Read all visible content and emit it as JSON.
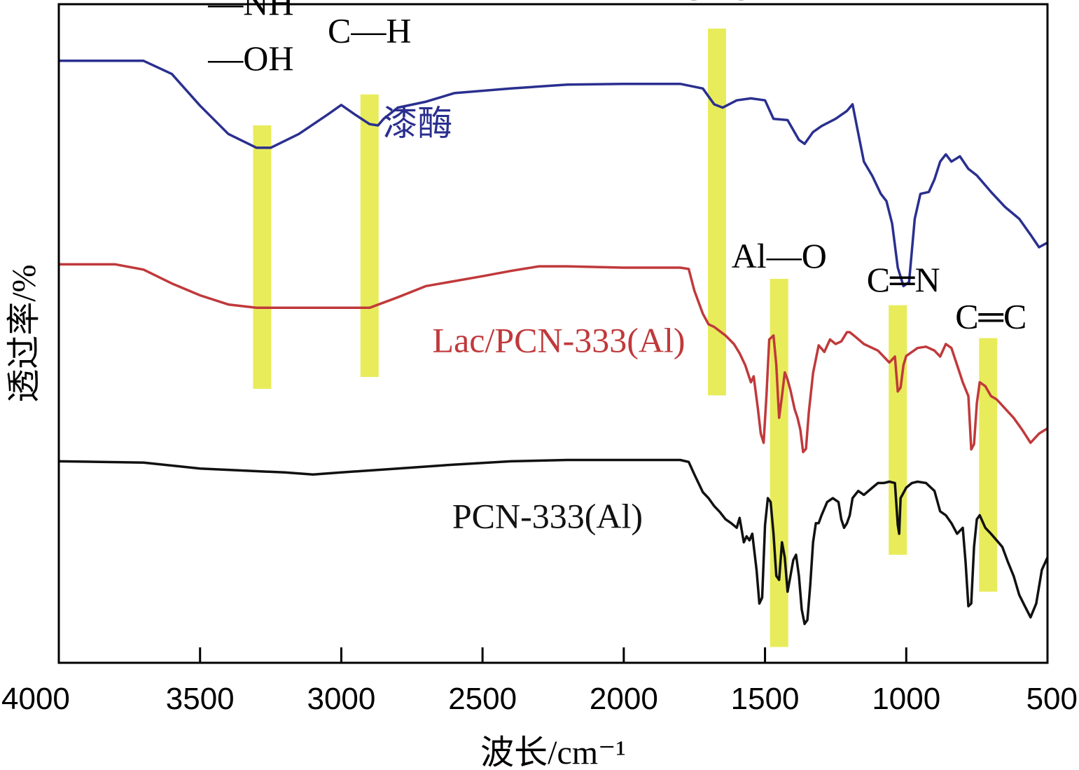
{
  "chart_data": {
    "type": "line",
    "title": "",
    "xlabel": "波长/cm⁻¹",
    "ylabel": "透过率/%",
    "xlim": [
      4000,
      500
    ],
    "x_reversed": true,
    "y_units": "transmittance, arbitrary offset (0 = bottom, 100 = top)",
    "ylim": [
      0,
      100
    ],
    "xticks": [
      4000,
      3500,
      3000,
      2500,
      2000,
      1500,
      1000,
      500
    ],
    "series": [
      {
        "name": "漆酶",
        "color": "#2a2f8f",
        "points": [
          [
            4000,
            91.4
          ],
          [
            3700,
            91.4
          ],
          [
            3600,
            89.4
          ],
          [
            3500,
            84.6
          ],
          [
            3400,
            80.3
          ],
          [
            3300,
            78.2
          ],
          [
            3250,
            78.2
          ],
          [
            3150,
            80.3
          ],
          [
            3050,
            83.2
          ],
          [
            3000,
            84.7
          ],
          [
            2950,
            83.2
          ],
          [
            2900,
            81.8
          ],
          [
            2870,
            81.6
          ],
          [
            2850,
            82.6
          ],
          [
            2800,
            84.3
          ],
          [
            2700,
            85.2
          ],
          [
            2600,
            86.5
          ],
          [
            2400,
            87.2
          ],
          [
            2200,
            87.8
          ],
          [
            2000,
            87.9
          ],
          [
            1800,
            87.9
          ],
          [
            1720,
            87.2
          ],
          [
            1680,
            84.8
          ],
          [
            1650,
            84.3
          ],
          [
            1600,
            85.4
          ],
          [
            1550,
            85.7
          ],
          [
            1500,
            85.4
          ],
          [
            1470,
            82.6
          ],
          [
            1420,
            82.4
          ],
          [
            1380,
            79.4
          ],
          [
            1360,
            78.8
          ],
          [
            1330,
            80.6
          ],
          [
            1300,
            81.5
          ],
          [
            1250,
            82.6
          ],
          [
            1210,
            83.8
          ],
          [
            1190,
            84.8
          ],
          [
            1170,
            80.4
          ],
          [
            1150,
            76.1
          ],
          [
            1120,
            73.9
          ],
          [
            1090,
            71.2
          ],
          [
            1070,
            70.1
          ],
          [
            1050,
            66.7
          ],
          [
            1030,
            60.0
          ],
          [
            1010,
            57.2
          ],
          [
            990,
            57.8
          ],
          [
            970,
            67.4
          ],
          [
            950,
            71.2
          ],
          [
            920,
            71.5
          ],
          [
            900,
            73.4
          ],
          [
            880,
            76.1
          ],
          [
            860,
            77.2
          ],
          [
            840,
            76.1
          ],
          [
            810,
            76.9
          ],
          [
            780,
            75.0
          ],
          [
            750,
            74.0
          ],
          [
            700,
            71.5
          ],
          [
            650,
            69.2
          ],
          [
            600,
            67.4
          ],
          [
            560,
            65.0
          ],
          [
            530,
            63.1
          ],
          [
            500,
            63.8
          ]
        ]
      },
      {
        "name": "Lac/PCN-333(Al)",
        "color": "#c0393b",
        "points": [
          [
            4000,
            60.5
          ],
          [
            3800,
            60.5
          ],
          [
            3700,
            59.7
          ],
          [
            3600,
            57.6
          ],
          [
            3500,
            55.8
          ],
          [
            3400,
            54.4
          ],
          [
            3300,
            53.9
          ],
          [
            3000,
            53.9
          ],
          [
            2900,
            53.9
          ],
          [
            2800,
            55.5
          ],
          [
            2700,
            57.2
          ],
          [
            2500,
            58.7
          ],
          [
            2400,
            59.5
          ],
          [
            2300,
            60.2
          ],
          [
            2200,
            60.2
          ],
          [
            2000,
            60.0
          ],
          [
            1800,
            60.0
          ],
          [
            1770,
            59.8
          ],
          [
            1750,
            56.5
          ],
          [
            1720,
            53.0
          ],
          [
            1700,
            51.4
          ],
          [
            1680,
            51.0
          ],
          [
            1640,
            49.7
          ],
          [
            1610,
            48.4
          ],
          [
            1590,
            47.0
          ],
          [
            1570,
            45.2
          ],
          [
            1550,
            42.6
          ],
          [
            1540,
            43.5
          ],
          [
            1525,
            38.5
          ],
          [
            1515,
            34.8
          ],
          [
            1505,
            33.4
          ],
          [
            1495,
            40.5
          ],
          [
            1485,
            49.1
          ],
          [
            1470,
            49.7
          ],
          [
            1460,
            45.2
          ],
          [
            1450,
            37.2
          ],
          [
            1440,
            40.5
          ],
          [
            1430,
            44.1
          ],
          [
            1420,
            43.0
          ],
          [
            1410,
            41.4
          ],
          [
            1395,
            38.5
          ],
          [
            1385,
            37.2
          ],
          [
            1375,
            35.4
          ],
          [
            1365,
            32.0
          ],
          [
            1355,
            32.5
          ],
          [
            1345,
            38.0
          ],
          [
            1330,
            44.0
          ],
          [
            1310,
            48.2
          ],
          [
            1290,
            47.2
          ],
          [
            1270,
            49.1
          ],
          [
            1250,
            48.4
          ],
          [
            1230,
            48.8
          ],
          [
            1210,
            50.2
          ],
          [
            1200,
            50.2
          ],
          [
            1180,
            49.5
          ],
          [
            1150,
            48.4
          ],
          [
            1100,
            47.4
          ],
          [
            1060,
            45.6
          ],
          [
            1040,
            46.5
          ],
          [
            1030,
            41.2
          ],
          [
            1020,
            41.8
          ],
          [
            1010,
            45.2
          ],
          [
            1000,
            46.6
          ],
          [
            960,
            47.8
          ],
          [
            930,
            48.0
          ],
          [
            900,
            47.4
          ],
          [
            880,
            46.5
          ],
          [
            860,
            48.4
          ],
          [
            840,
            47.8
          ],
          [
            820,
            45.2
          ],
          [
            800,
            42.6
          ],
          [
            780,
            40.5
          ],
          [
            770,
            32.4
          ],
          [
            760,
            33.2
          ],
          [
            750,
            39.4
          ],
          [
            740,
            42.6
          ],
          [
            720,
            42.0
          ],
          [
            700,
            40.5
          ],
          [
            680,
            40.0
          ],
          [
            650,
            38.6
          ],
          [
            620,
            37.2
          ],
          [
            590,
            35.4
          ],
          [
            560,
            33.4
          ],
          [
            530,
            34.8
          ],
          [
            500,
            35.6
          ]
        ]
      },
      {
        "name": "PCN-333(Al)",
        "color": "#111111",
        "points": [
          [
            4000,
            30.6
          ],
          [
            3700,
            30.4
          ],
          [
            3500,
            29.5
          ],
          [
            3300,
            29.1
          ],
          [
            3200,
            28.9
          ],
          [
            3100,
            28.6
          ],
          [
            3000,
            28.9
          ],
          [
            2800,
            29.5
          ],
          [
            2600,
            30.1
          ],
          [
            2400,
            30.6
          ],
          [
            2200,
            30.8
          ],
          [
            2000,
            30.8
          ],
          [
            1800,
            30.8
          ],
          [
            1770,
            30.5
          ],
          [
            1750,
            28.6
          ],
          [
            1720,
            25.9
          ],
          [
            1700,
            25.0
          ],
          [
            1680,
            23.8
          ],
          [
            1660,
            22.9
          ],
          [
            1640,
            21.8
          ],
          [
            1620,
            21.2
          ],
          [
            1600,
            20.5
          ],
          [
            1590,
            22.0
          ],
          [
            1575,
            18.3
          ],
          [
            1565,
            19.2
          ],
          [
            1555,
            18.6
          ],
          [
            1545,
            19.6
          ],
          [
            1530,
            14.1
          ],
          [
            1520,
            9.0
          ],
          [
            1510,
            9.9
          ],
          [
            1500,
            20.9
          ],
          [
            1490,
            25.0
          ],
          [
            1480,
            24.4
          ],
          [
            1470,
            19.6
          ],
          [
            1460,
            13.2
          ],
          [
            1450,
            12.6
          ],
          [
            1440,
            18.3
          ],
          [
            1430,
            16.0
          ],
          [
            1420,
            10.8
          ],
          [
            1410,
            13.2
          ],
          [
            1400,
            15.6
          ],
          [
            1390,
            16.4
          ],
          [
            1380,
            13.2
          ],
          [
            1370,
            8.1
          ],
          [
            1360,
            5.9
          ],
          [
            1350,
            6.5
          ],
          [
            1340,
            11.7
          ],
          [
            1330,
            18.3
          ],
          [
            1320,
            21.2
          ],
          [
            1310,
            21.2
          ],
          [
            1300,
            22.4
          ],
          [
            1280,
            24.4
          ],
          [
            1260,
            25.0
          ],
          [
            1240,
            24.4
          ],
          [
            1230,
            21.8
          ],
          [
            1220,
            20.5
          ],
          [
            1210,
            21.2
          ],
          [
            1200,
            22.4
          ],
          [
            1190,
            25.0
          ],
          [
            1170,
            26.1
          ],
          [
            1150,
            25.5
          ],
          [
            1120,
            26.6
          ],
          [
            1100,
            27.3
          ],
          [
            1080,
            27.3
          ],
          [
            1060,
            27.5
          ],
          [
            1040,
            27.3
          ],
          [
            1030,
            20.9
          ],
          [
            1025,
            19.6
          ],
          [
            1020,
            25.0
          ],
          [
            1000,
            26.6
          ],
          [
            980,
            27.3
          ],
          [
            960,
            27.5
          ],
          [
            930,
            27.3
          ],
          [
            900,
            26.1
          ],
          [
            880,
            23.0
          ],
          [
            860,
            22.4
          ],
          [
            840,
            21.2
          ],
          [
            820,
            19.6
          ],
          [
            800,
            20.5
          ],
          [
            790,
            15.3
          ],
          [
            780,
            8.6
          ],
          [
            770,
            9.0
          ],
          [
            760,
            17.6
          ],
          [
            750,
            21.8
          ],
          [
            740,
            22.4
          ],
          [
            720,
            20.5
          ],
          [
            700,
            19.6
          ],
          [
            680,
            18.6
          ],
          [
            660,
            17.6
          ],
          [
            640,
            15.3
          ],
          [
            620,
            13.2
          ],
          [
            600,
            10.3
          ],
          [
            580,
            8.6
          ],
          [
            560,
            6.9
          ],
          [
            540,
            9.0
          ],
          [
            520,
            14.1
          ],
          [
            500,
            16.0
          ]
        ]
      }
    ],
    "highlight_bands": [
      {
        "x": 3280,
        "y_range": [
          41.6,
          81.6
        ],
        "color": "#e8ec5a"
      },
      {
        "x": 2900,
        "y_range": [
          43.4,
          86.3
        ],
        "color": "#e8ec5a"
      },
      {
        "x": 1670,
        "y_range": [
          40.6,
          96.3
        ],
        "color": "#e8ec5a"
      },
      {
        "x": 1450,
        "y_range": [
          2.4,
          58.3
        ],
        "color": "#e8ec5a"
      },
      {
        "x": 1030,
        "y_range": [
          16.4,
          54.3
        ],
        "color": "#e8ec5a"
      },
      {
        "x": 710,
        "y_range": [
          10.8,
          49.3
        ],
        "color": "#e8ec5a"
      }
    ],
    "annotations": [
      {
        "text": "—NH",
        "x": 3320,
        "y": 98.4
      },
      {
        "text": "—OH",
        "x": 3320,
        "y": 90.0
      },
      {
        "text": "C—H",
        "x": 2900,
        "y": 94.2
      },
      {
        "text": "C═O",
        "x": 1670,
        "y": 100.7
      },
      {
        "text": "Al—O",
        "x": 1450,
        "y": 60.0
      },
      {
        "text": "C═N",
        "x": 1010,
        "y": 56.4
      },
      {
        "text": "C═C",
        "x": 700,
        "y": 50.8
      }
    ],
    "series_labels": [
      {
        "text": "漆酶",
        "series": "漆酶",
        "x": 2730,
        "y": 80.1
      },
      {
        "text": "Lac/PCN-333(Al)",
        "series": "Lac/PCN-333(Al)",
        "x": 2230,
        "y": 47.2
      },
      {
        "text": "PCN-333(Al)",
        "series": "PCN-333(Al)",
        "x": 2270,
        "y": 20.5
      }
    ]
  }
}
